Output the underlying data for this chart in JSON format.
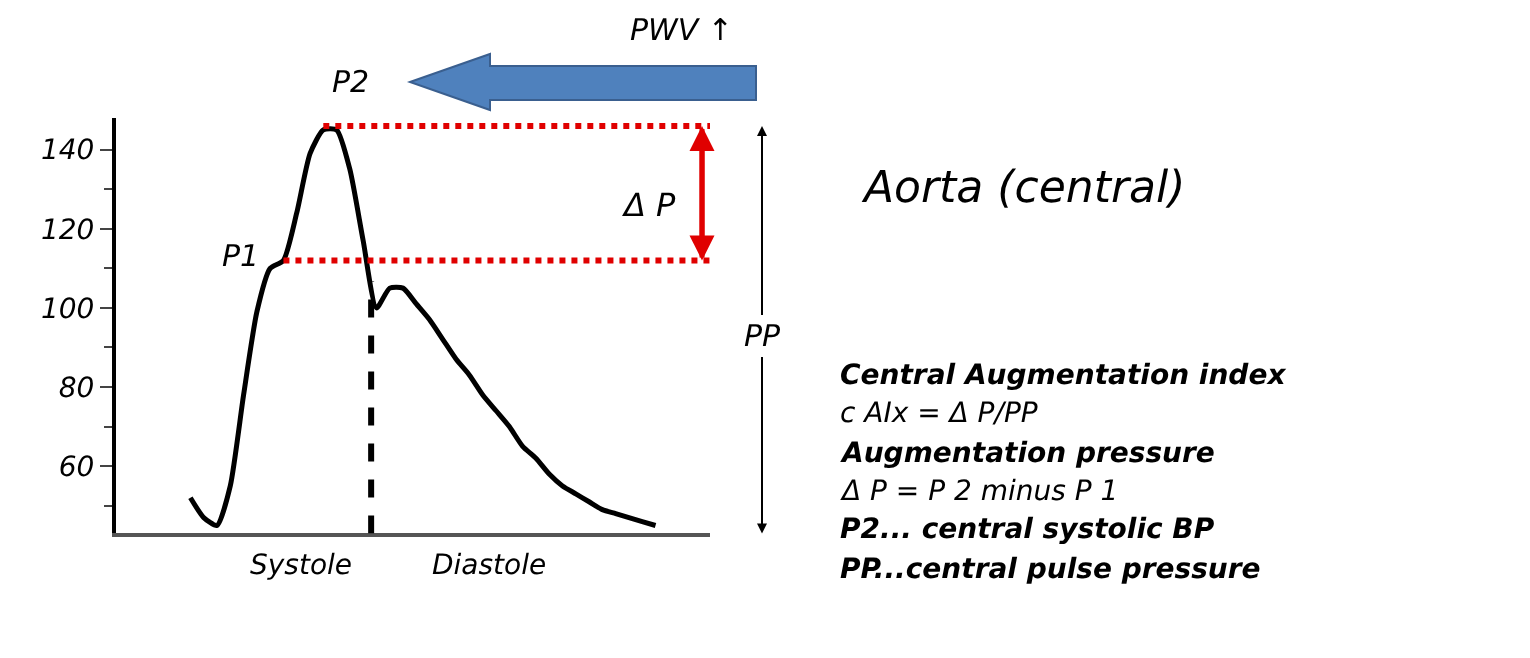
{
  "chart_data": {
    "type": "line",
    "categories": [
      null,
      null,
      null,
      null,
      null,
      null,
      null,
      null,
      null,
      null,
      null,
      null,
      null,
      null,
      null,
      null,
      null,
      null,
      null,
      null,
      null,
      null,
      null,
      null,
      null,
      null,
      null,
      null,
      null,
      null,
      null,
      null,
      null,
      null,
      null,
      null
    ],
    "series": [
      {
        "color": "#000000",
        "values": [
          52,
          47,
          45,
          55,
          78,
          99,
          110,
          112,
          124,
          139,
          145,
          145,
          135,
          117,
          100,
          105,
          105,
          101,
          97,
          92,
          87,
          83,
          78,
          74,
          70,
          65,
          62,
          58,
          55,
          53,
          51,
          49,
          48,
          47,
          46,
          45
        ]
      }
    ],
    "ylim": [
      43,
      148
    ],
    "yticks": [
      60,
      80,
      100,
      120,
      140
    ],
    "ref_lines": [
      {
        "axis": "y",
        "value": 112,
        "color": "#e00000",
        "line_style": "dotted"
      },
      {
        "axis": "y",
        "value": 146,
        "color": "#e00000",
        "line_style": "dotted"
      }
    ],
    "annotations": [
      "P1",
      "P2",
      "Systole",
      "Diastole",
      "Δ P",
      "PP",
      "PWV ↑",
      "Aorta (central)",
      "Central Augmentation index",
      "c AIx = Δ P/PP",
      "Augmentation pressure",
      "Δ P = P 2 minus P 1",
      "P2... central systolic BP",
      "PP...central pulse pressure"
    ],
    "marker": "none",
    "line_style": "solid"
  }
}
